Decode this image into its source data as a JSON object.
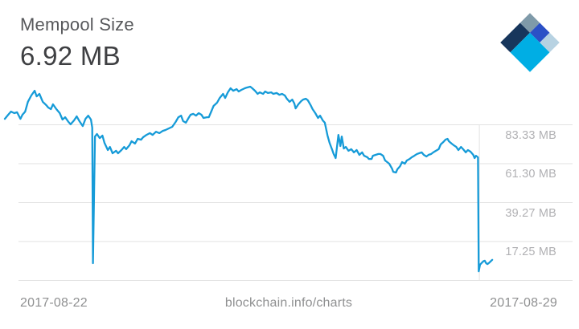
{
  "header": {
    "title": "Mempool Size",
    "value": "6.92 MB"
  },
  "footer": {
    "start_date": "2017-08-22",
    "watermark": "blockchain.info/charts",
    "end_date": "2017-08-29"
  },
  "logo": {
    "label": "blockchain-diamond-logo",
    "colors": {
      "slate": "#7f9aa9",
      "royal": "#2b50c6",
      "pale": "#b7d2e2",
      "navy": "#17365c",
      "cyan": "#00aee4"
    }
  },
  "chart_data": {
    "type": "line",
    "title": "Mempool Size",
    "current_value_mb": 6.92,
    "unit": "MB",
    "x_start_date": "2017-08-22",
    "x_end_date": "2017-08-29",
    "x_axis_unit": "days since 2017-08-22",
    "line_color": "#169bd8",
    "grid_color": "#e2e2e2",
    "legend": "none",
    "y_ticks": [
      {
        "value": 83.33,
        "label": "83.33 MB"
      },
      {
        "value": 61.3,
        "label": "61.30 MB"
      },
      {
        "value": 39.27,
        "label": "39.27 MB"
      },
      {
        "value": 17.25,
        "label": "17.25 MB"
      }
    ],
    "y_bottom_gridline_value": -4.78,
    "x_gridline_day": 7,
    "series": [
      {
        "name": "Mempool Size (MB)",
        "points": [
          [
            0.0,
            86.7
          ],
          [
            0.05,
            89.0
          ],
          [
            0.09,
            90.8
          ],
          [
            0.14,
            89.9
          ],
          [
            0.18,
            90.4
          ],
          [
            0.23,
            86.7
          ],
          [
            0.26,
            89.0
          ],
          [
            0.3,
            90.8
          ],
          [
            0.34,
            96.3
          ],
          [
            0.39,
            99.9
          ],
          [
            0.44,
            102.6
          ],
          [
            0.47,
            99.4
          ],
          [
            0.51,
            100.8
          ],
          [
            0.56,
            96.3
          ],
          [
            0.61,
            94.5
          ],
          [
            0.64,
            93.1
          ],
          [
            0.68,
            92.2
          ],
          [
            0.71,
            94.9
          ],
          [
            0.76,
            92.2
          ],
          [
            0.81,
            89.9
          ],
          [
            0.85,
            86.3
          ],
          [
            0.89,
            87.6
          ],
          [
            0.94,
            84.9
          ],
          [
            0.97,
            83.6
          ],
          [
            1.02,
            85.8
          ],
          [
            1.06,
            88.1
          ],
          [
            1.1,
            85.4
          ],
          [
            1.15,
            82.6
          ],
          [
            1.19,
            86.7
          ],
          [
            1.23,
            88.5
          ],
          [
            1.27,
            86.3
          ],
          [
            1.29,
            81.7
          ],
          [
            1.3,
            5.0
          ],
          [
            1.33,
            76.7
          ],
          [
            1.36,
            78.1
          ],
          [
            1.4,
            75.8
          ],
          [
            1.44,
            77.2
          ],
          [
            1.47,
            73.1
          ],
          [
            1.52,
            69.0
          ],
          [
            1.55,
            70.8
          ],
          [
            1.59,
            67.2
          ],
          [
            1.64,
            68.6
          ],
          [
            1.67,
            67.2
          ],
          [
            1.72,
            69.0
          ],
          [
            1.76,
            70.8
          ],
          [
            1.79,
            69.5
          ],
          [
            1.84,
            71.8
          ],
          [
            1.87,
            74.0
          ],
          [
            1.92,
            72.7
          ],
          [
            1.96,
            75.4
          ],
          [
            2.01,
            74.9
          ],
          [
            2.04,
            76.3
          ],
          [
            2.09,
            77.6
          ],
          [
            2.14,
            78.6
          ],
          [
            2.18,
            77.6
          ],
          [
            2.23,
            79.4
          ],
          [
            2.28,
            78.6
          ],
          [
            2.33,
            79.9
          ],
          [
            2.37,
            80.4
          ],
          [
            2.42,
            81.3
          ],
          [
            2.47,
            82.2
          ],
          [
            2.52,
            84.9
          ],
          [
            2.56,
            87.6
          ],
          [
            2.6,
            88.5
          ],
          [
            2.63,
            85.4
          ],
          [
            2.67,
            84.5
          ],
          [
            2.71,
            87.2
          ],
          [
            2.74,
            89.0
          ],
          [
            2.78,
            89.5
          ],
          [
            2.82,
            88.5
          ],
          [
            2.86,
            89.9
          ],
          [
            2.9,
            89.0
          ],
          [
            2.93,
            87.2
          ],
          [
            2.98,
            87.6
          ],
          [
            3.01,
            87.6
          ],
          [
            3.05,
            91.3
          ],
          [
            3.08,
            94.0
          ],
          [
            3.13,
            95.8
          ],
          [
            3.17,
            98.5
          ],
          [
            3.22,
            100.8
          ],
          [
            3.25,
            98.5
          ],
          [
            3.29,
            101.7
          ],
          [
            3.33,
            104.0
          ],
          [
            3.37,
            102.6
          ],
          [
            3.42,
            103.5
          ],
          [
            3.45,
            102.2
          ],
          [
            3.49,
            103.1
          ],
          [
            3.54,
            104.0
          ],
          [
            3.57,
            104.4
          ],
          [
            3.62,
            104.9
          ],
          [
            3.65,
            104.0
          ],
          [
            3.69,
            102.6
          ],
          [
            3.73,
            100.8
          ],
          [
            3.76,
            101.7
          ],
          [
            3.81,
            100.8
          ],
          [
            3.84,
            102.2
          ],
          [
            3.88,
            101.3
          ],
          [
            3.93,
            101.7
          ],
          [
            3.96,
            100.8
          ],
          [
            4.01,
            101.3
          ],
          [
            4.05,
            100.3
          ],
          [
            4.09,
            100.8
          ],
          [
            4.13,
            99.9
          ],
          [
            4.16,
            98.1
          ],
          [
            4.2,
            96.3
          ],
          [
            4.24,
            97.6
          ],
          [
            4.27,
            95.4
          ],
          [
            4.29,
            92.6
          ],
          [
            4.33,
            94.9
          ],
          [
            4.37,
            96.7
          ],
          [
            4.4,
            97.6
          ],
          [
            4.44,
            98.1
          ],
          [
            4.47,
            97.2
          ],
          [
            4.51,
            94.5
          ],
          [
            4.54,
            92.2
          ],
          [
            4.58,
            89.9
          ],
          [
            4.62,
            87.2
          ],
          [
            4.65,
            88.5
          ],
          [
            4.69,
            85.8
          ],
          [
            4.72,
            84.5
          ],
          [
            4.76,
            77.2
          ],
          [
            4.79,
            73.1
          ],
          [
            4.83,
            69.0
          ],
          [
            4.85,
            66.8
          ],
          [
            4.88,
            64.5
          ],
          [
            4.92,
            77.6
          ],
          [
            4.95,
            71.3
          ],
          [
            4.97,
            76.7
          ],
          [
            5.0,
            69.9
          ],
          [
            5.03,
            70.8
          ],
          [
            5.07,
            68.6
          ],
          [
            5.11,
            69.5
          ],
          [
            5.15,
            67.7
          ],
          [
            5.19,
            69.0
          ],
          [
            5.23,
            66.3
          ],
          [
            5.27,
            67.7
          ],
          [
            5.3,
            65.8
          ],
          [
            5.35,
            64.9
          ],
          [
            5.37,
            64.0
          ],
          [
            5.41,
            64.0
          ],
          [
            5.43,
            65.8
          ],
          [
            5.47,
            66.3
          ],
          [
            5.51,
            66.8
          ],
          [
            5.54,
            66.8
          ],
          [
            5.58,
            65.8
          ],
          [
            5.61,
            63.1
          ],
          [
            5.64,
            62.2
          ],
          [
            5.67,
            61.3
          ],
          [
            5.71,
            58.6
          ],
          [
            5.73,
            56.7
          ],
          [
            5.77,
            56.3
          ],
          [
            5.79,
            58.1
          ],
          [
            5.83,
            59.9
          ],
          [
            5.86,
            62.2
          ],
          [
            5.9,
            61.3
          ],
          [
            5.93,
            63.1
          ],
          [
            5.97,
            64.0
          ],
          [
            6.0,
            64.9
          ],
          [
            6.04,
            65.8
          ],
          [
            6.08,
            66.8
          ],
          [
            6.11,
            67.2
          ],
          [
            6.15,
            67.7
          ],
          [
            6.18,
            66.3
          ],
          [
            6.22,
            65.4
          ],
          [
            6.25,
            66.3
          ],
          [
            6.29,
            66.8
          ],
          [
            6.32,
            67.7
          ],
          [
            6.36,
            68.6
          ],
          [
            6.4,
            69.5
          ],
          [
            6.43,
            72.2
          ],
          [
            6.47,
            73.6
          ],
          [
            6.5,
            74.9
          ],
          [
            6.53,
            75.4
          ],
          [
            6.55,
            74.0
          ],
          [
            6.59,
            72.7
          ],
          [
            6.62,
            71.8
          ],
          [
            6.66,
            70.8
          ],
          [
            6.69,
            69.0
          ],
          [
            6.73,
            70.8
          ],
          [
            6.76,
            69.5
          ],
          [
            6.8,
            67.7
          ],
          [
            6.83,
            69.0
          ],
          [
            6.87,
            68.1
          ],
          [
            6.91,
            66.3
          ],
          [
            6.93,
            64.5
          ],
          [
            6.95,
            65.8
          ],
          [
            6.98,
            64.9
          ],
          [
            6.99,
            0.4
          ],
          [
            7.01,
            4.1
          ],
          [
            7.04,
            5.4
          ],
          [
            7.06,
            6.1
          ],
          [
            7.08,
            6.4
          ],
          [
            7.1,
            5.0
          ],
          [
            7.12,
            4.5
          ],
          [
            7.15,
            5.4
          ],
          [
            7.19,
            6.9
          ]
        ]
      }
    ]
  }
}
